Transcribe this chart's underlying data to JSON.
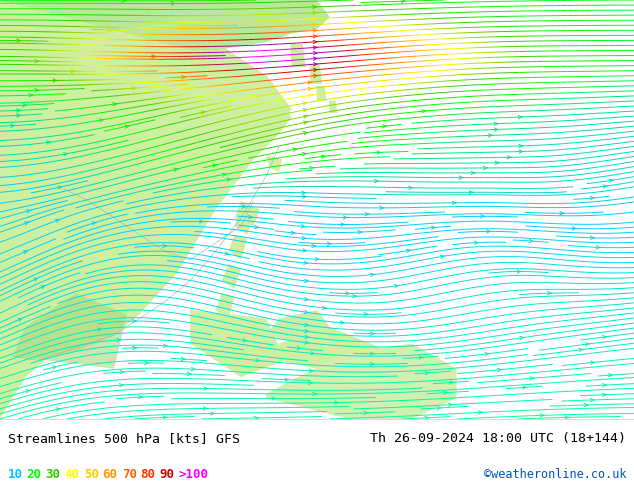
{
  "title_left": "Streamlines 500 hPa [kts] GFS",
  "title_right": "Th 26-09-2024 18:00 UTC (18+144)",
  "credit": "©weatheronline.co.uk",
  "legend_values": [
    "10",
    "20",
    "30",
    "40",
    "50",
    "60",
    "70",
    "80",
    "90",
    ">100"
  ],
  "legend_colors": [
    "#00ccff",
    "#00ff00",
    "#33cc00",
    "#ffff00",
    "#ffcc00",
    "#ff9900",
    "#ff6600",
    "#ff3300",
    "#cc0000",
    "#ff00ff"
  ],
  "ocean_color": "#e0e0e0",
  "land_color": "#ccf0a0",
  "land_dark_color": "#90d060",
  "fig_bg": "#ffffff",
  "title_color": "#000000",
  "credit_color": "#0055bb",
  "figsize": [
    6.34,
    4.9
  ],
  "dpi": 100
}
